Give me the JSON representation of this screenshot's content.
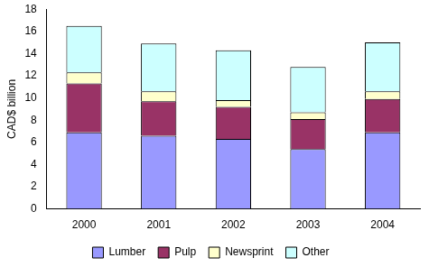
{
  "chart_data": {
    "type": "bar",
    "stacked": true,
    "y_label": "CAD$ billion",
    "categories": [
      "2000",
      "2001",
      "2002",
      "2003",
      "2004"
    ],
    "series": [
      {
        "name": "Lumber",
        "color": "#9999FF",
        "values": [
          6.9,
          6.6,
          6.3,
          5.4,
          6.9
        ]
      },
      {
        "name": "Pulp",
        "color": "#993366",
        "values": [
          4.4,
          3.1,
          2.9,
          2.7,
          3.0
        ]
      },
      {
        "name": "Newsprint",
        "color": "#FFFFCC",
        "values": [
          1.0,
          0.9,
          0.6,
          0.6,
          0.7
        ]
      },
      {
        "name": "Other",
        "color": "#CCFFFF",
        "values": [
          4.2,
          4.3,
          4.5,
          4.1,
          4.4
        ]
      }
    ],
    "ylim": [
      0,
      18
    ],
    "yticks": [
      0,
      2,
      4,
      6,
      8,
      10,
      12,
      14,
      16,
      18
    ],
    "grid": false,
    "legend": "bottom"
  }
}
